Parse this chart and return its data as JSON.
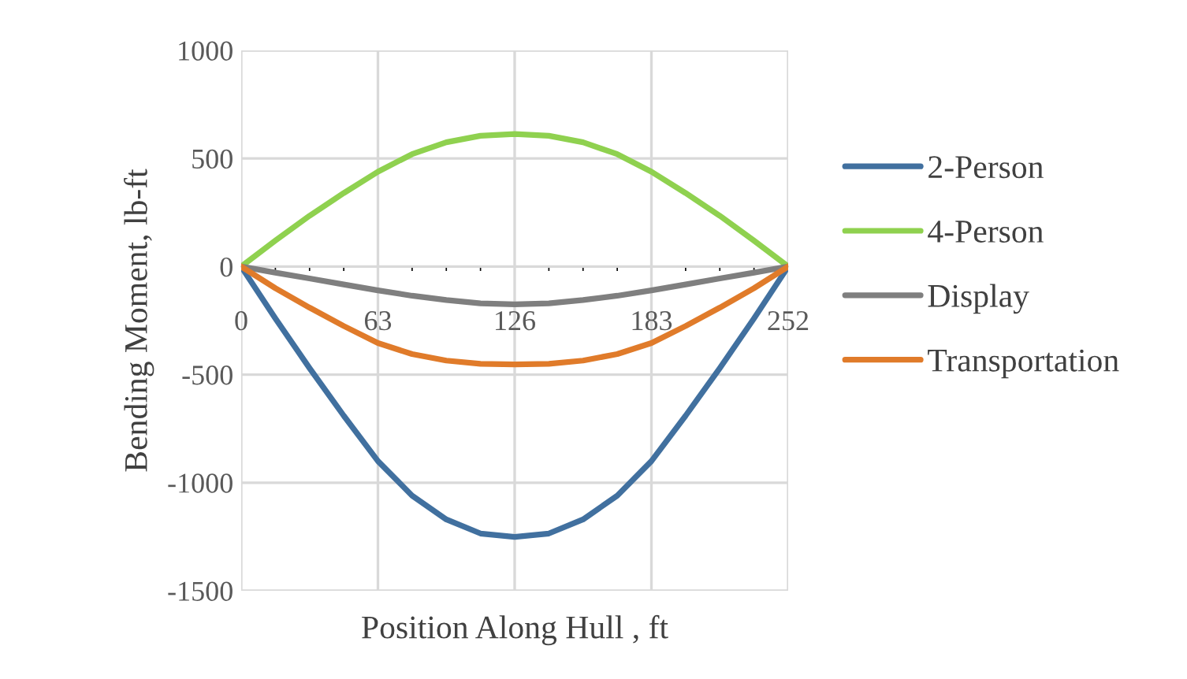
{
  "chart_data": {
    "type": "line",
    "xlabel": "Position Along Hull , ft",
    "ylabel": "Bending Moment, lb-ft",
    "categories": [
      "0",
      null,
      null,
      null,
      "63",
      null,
      null,
      null,
      "126",
      null,
      null,
      null,
      "183",
      null,
      null,
      null,
      "252"
    ],
    "series": [
      {
        "name": "2-Person",
        "color": "#41709f",
        "values": [
          0,
          -240,
          -470,
          -690,
          -900,
          -1060,
          -1170,
          -1235,
          -1251,
          -1235,
          -1170,
          -1060,
          -900,
          -690,
          -470,
          -240,
          0
        ]
      },
      {
        "name": "4-Person",
        "color": "#8fd14f",
        "values": [
          0,
          120,
          235,
          340,
          439,
          520,
          575,
          605,
          613,
          605,
          575,
          520,
          439,
          340,
          235,
          120,
          0
        ]
      },
      {
        "name": "Display",
        "color": "#7f7f7f",
        "values": [
          0,
          -28,
          -55,
          -83,
          -110,
          -135,
          -155,
          -170,
          -175,
          -170,
          -155,
          -135,
          -110,
          -83,
          -55,
          -28,
          0
        ]
      },
      {
        "name": "Transportation",
        "color": "#e07b2a",
        "values": [
          0,
          -100,
          -190,
          -275,
          -354,
          -405,
          -435,
          -450,
          -453,
          -450,
          -435,
          -405,
          -354,
          -275,
          -190,
          -100,
          0
        ]
      }
    ],
    "ylim": [
      -1500,
      1000
    ],
    "yticks": [
      -1500,
      -1000,
      -500,
      0,
      500,
      1000
    ],
    "grid": true,
    "legend": "right",
    "marker": "none",
    "line_style": "solid"
  }
}
